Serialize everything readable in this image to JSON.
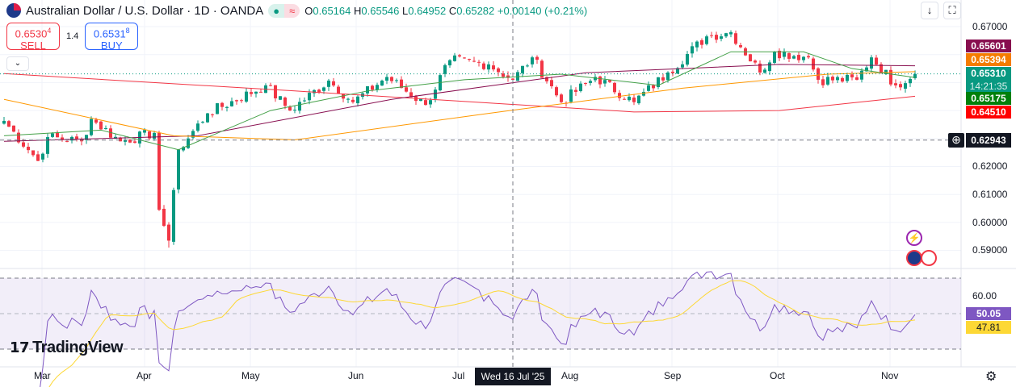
{
  "header": {
    "title": "Australian Dollar / U.S. Dollar · 1D · OANDA",
    "open_label": "O",
    "open": "0.65164",
    "high_label": "H",
    "high": "0.65546",
    "low_label": "L",
    "low": "0.64952",
    "close_label": "C",
    "close": "0.65282",
    "change": "+0.00140 (+0.21%)",
    "status_dot": "●",
    "wave": "≈"
  },
  "trade": {
    "sell_price": "0.6530",
    "sell_sup": "4",
    "sell_label": "SELL",
    "spread": "1.4",
    "buy_price": "0.6531",
    "buy_sup": "8",
    "buy_label": "BUY"
  },
  "toolbar": {
    "down": "↓",
    "fullscreen": "⛶",
    "collapse": "⌄"
  },
  "price_axis": [
    "0.67000",
    "0.62000",
    "0.61000",
    "0.60000",
    "0.59000"
  ],
  "price_labels": [
    {
      "value": "0.65601",
      "color": "#880e4f"
    },
    {
      "value": "0.65394",
      "color": "#f57c00"
    },
    {
      "value": "0.65310",
      "sub": "14:21:35",
      "color": "#089981"
    },
    {
      "value": "0.65175",
      "color": "#00800b"
    },
    {
      "value": "0.64510",
      "color": "#ff0000"
    }
  ],
  "crosshair": {
    "price": "0.62943",
    "date": "Wed 16 Jul '25"
  },
  "rsi": {
    "axis": "60.00",
    "value": "50.05",
    "ma": "47.81",
    "line_color": "#7e57c2",
    "ma_color": "#fdd835"
  },
  "time_axis": [
    "Mar",
    "Apr",
    "May",
    "Jun",
    "Jul",
    "Aug",
    "Sep",
    "Oct",
    "Nov"
  ],
  "brand": "TradingView",
  "colors": {
    "up": "#089981",
    "down": "#f23645"
  },
  "chart_data": {
    "type": "candlestick",
    "symbol": "AUDUSD",
    "ylim": [
      0.585,
      0.675
    ],
    "close_anchors": [
      [
        0,
        0.6363
      ],
      [
        7,
        0.622
      ],
      [
        9,
        0.6305
      ],
      [
        16,
        0.629
      ],
      [
        18,
        0.637
      ],
      [
        24,
        0.629
      ],
      [
        31,
        0.632
      ],
      [
        32,
        0.6045
      ],
      [
        34,
        0.5935
      ],
      [
        36,
        0.626
      ],
      [
        42,
        0.639
      ],
      [
        54,
        0.649
      ],
      [
        59,
        0.64
      ],
      [
        67,
        0.6507
      ],
      [
        72,
        0.643
      ],
      [
        79,
        0.652
      ],
      [
        87,
        0.642
      ],
      [
        92,
        0.658
      ],
      [
        100,
        0.6565
      ],
      [
        105,
        0.651
      ],
      [
        109,
        0.659
      ],
      [
        115,
        0.643
      ],
      [
        122,
        0.652
      ],
      [
        130,
        0.643
      ],
      [
        137,
        0.6536
      ],
      [
        145,
        0.6665
      ],
      [
        150,
        0.668
      ],
      [
        156,
        0.6536
      ],
      [
        159,
        0.661
      ],
      [
        166,
        0.659
      ],
      [
        168,
        0.651
      ],
      [
        176,
        0.651
      ],
      [
        179,
        0.659
      ],
      [
        184,
        0.649
      ],
      [
        188,
        0.6531
      ]
    ],
    "ma_lines": [
      {
        "color": "#f23645",
        "points": [
          [
            0,
            0.6532
          ],
          [
            60,
            0.647
          ],
          [
            130,
            0.6395
          ],
          [
            160,
            0.64
          ],
          [
            188,
            0.6451
          ]
        ]
      },
      {
        "color": "#880e4f",
        "points": [
          [
            0,
            0.629
          ],
          [
            40,
            0.631
          ],
          [
            80,
            0.644
          ],
          [
            120,
            0.6535
          ],
          [
            160,
            0.6565
          ],
          [
            188,
            0.656
          ]
        ]
      },
      {
        "color": "#ff9800",
        "points": [
          [
            0,
            0.644
          ],
          [
            35,
            0.631
          ],
          [
            60,
            0.6295
          ],
          [
            100,
            0.639
          ],
          [
            140,
            0.648
          ],
          [
            170,
            0.653
          ],
          [
            188,
            0.6539
          ]
        ]
      },
      {
        "color": "#43a047",
        "points": [
          [
            0,
            0.631
          ],
          [
            20,
            0.633
          ],
          [
            36,
            0.626
          ],
          [
            55,
            0.64
          ],
          [
            75,
            0.647
          ],
          [
            95,
            0.651
          ],
          [
            115,
            0.653
          ],
          [
            135,
            0.649
          ],
          [
            150,
            0.661
          ],
          [
            165,
            0.661
          ],
          [
            175,
            0.655
          ],
          [
            188,
            0.6518
          ]
        ]
      }
    ]
  }
}
